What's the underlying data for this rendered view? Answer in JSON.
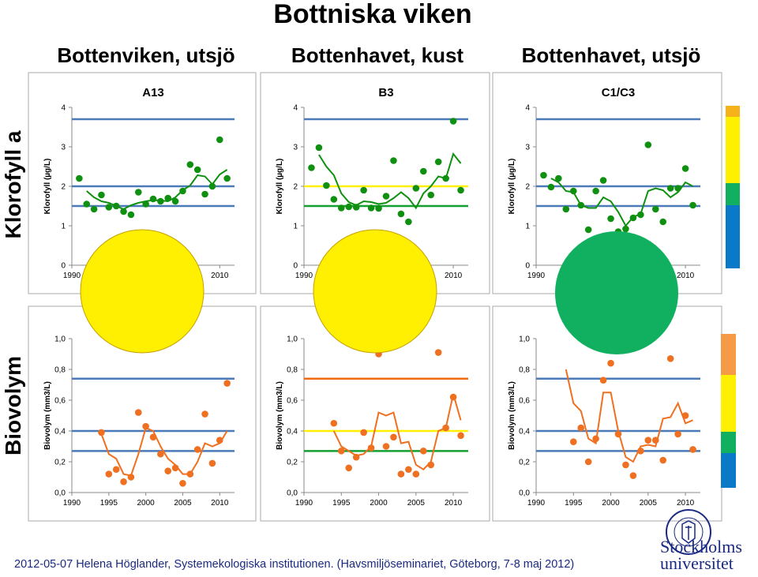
{
  "header": {
    "title": "Bottniska viken",
    "basins": [
      "Bottenviken, utsjö",
      "Bottenhavet, kust",
      "Bottenhavet, utsjö"
    ]
  },
  "row_labels": {
    "chlorophyll": "Klorofyll a",
    "biovolume": "Biovolym"
  },
  "colors": {
    "chl_points": "#109010",
    "bio_points": "#ee7020",
    "ref_blue": "#4a7ab8",
    "ref_yellow": "#ffef00",
    "ref_green": "#14a030",
    "ref_orange": "#f06a10",
    "status_yellow": "#ffef00",
    "status_green": "#10b060",
    "scale_chl": [
      "#f6b21a",
      "#ffef00",
      "#10b060",
      "#0a7ac8"
    ],
    "scale_bio": [
      "#f59a45",
      "#ffef00",
      "#10b060",
      "#0a7ac8"
    ]
  },
  "footer": {
    "text": "2012-05-07 Helena Höglander, Systemekologiska institutionen. (Havsmiljöseminariet, Göteborg, 7-8 maj 2012)"
  },
  "logo": {
    "seal_text": "UNIVERSITET · STOCKHOLMS",
    "line1": "Stockholms",
    "line2": "universitet"
  },
  "chart_data": [
    {
      "type": "scatter",
      "id": "chl-A13",
      "title": "A13",
      "ylabel": "Klorofyll (µg/L)",
      "xlim": [
        1990,
        2012
      ],
      "ylim": [
        0,
        4
      ],
      "yticks": [
        0,
        1,
        2,
        3,
        4
      ],
      "yticklabels": [
        "0",
        "1",
        "2",
        "3",
        "4"
      ],
      "xticks": [
        1990,
        2010
      ],
      "xticklabels": [
        "1990",
        "2010"
      ],
      "status_circle": "yellow",
      "reference_lines": [
        {
          "y": 3.7,
          "color": "blue"
        },
        {
          "y": 2.0,
          "color": "blue"
        },
        {
          "y": 1.5,
          "color": "blue"
        }
      ],
      "points": {
        "x": [
          1991,
          1992,
          1993,
          1994,
          1995,
          1996,
          1997,
          1998,
          1999,
          2000,
          2001,
          2002,
          2003,
          2004,
          2005,
          2006,
          2007,
          2008,
          2009,
          2010,
          2011
        ],
        "y": [
          2.2,
          1.55,
          1.42,
          1.78,
          1.47,
          1.5,
          1.36,
          1.28,
          1.85,
          1.55,
          1.68,
          1.62,
          1.7,
          1.62,
          1.88,
          2.55,
          2.42,
          1.8,
          2.0,
          3.18,
          2.2
        ]
      },
      "trend": {
        "x": [
          1992,
          1993,
          1994,
          1995,
          1996,
          1997,
          1998,
          1999,
          2000,
          2001,
          2002,
          2003,
          2004,
          2005,
          2006,
          2007,
          2008,
          2009,
          2010,
          2011
        ],
        "y": [
          1.88,
          1.72,
          1.62,
          1.58,
          1.5,
          1.42,
          1.52,
          1.58,
          1.62,
          1.65,
          1.64,
          1.62,
          1.72,
          1.9,
          2.02,
          2.28,
          2.25,
          2.05,
          2.3,
          2.42
        ]
      }
    },
    {
      "type": "scatter",
      "id": "chl-B3",
      "title": "B3",
      "ylabel": "Klorofyll (µg/L)",
      "xlim": [
        1990,
        2012
      ],
      "ylim": [
        0,
        4
      ],
      "yticks": [
        0,
        1,
        2,
        3,
        4
      ],
      "yticklabels": [
        "0",
        "1",
        "2",
        "3",
        "4"
      ],
      "xticks": [
        1990,
        2010
      ],
      "xticklabels": [
        "1990",
        "2010"
      ],
      "status_circle": "yellow",
      "reference_lines": [
        {
          "y": 3.7,
          "color": "blue"
        },
        {
          "y": 2.0,
          "color": "yellow"
        },
        {
          "y": 1.5,
          "color": "green"
        }
      ],
      "points": {
        "x": [
          1991,
          1992,
          1993,
          1994,
          1995,
          1996,
          1997,
          1998,
          1999,
          2000,
          2001,
          2002,
          2003,
          2004,
          2005,
          2006,
          2007,
          2008,
          2009,
          2010,
          2011
        ],
        "y": [
          2.47,
          2.98,
          2.02,
          1.67,
          1.45,
          1.48,
          1.47,
          1.9,
          1.45,
          1.44,
          1.75,
          2.65,
          1.3,
          1.1,
          1.95,
          2.38,
          1.78,
          2.62,
          2.2,
          3.65,
          1.9
        ]
      },
      "trend": {
        "x": [
          1992,
          1993,
          1994,
          1995,
          1996,
          1997,
          1998,
          1999,
          2000,
          2001,
          2002,
          2003,
          2004,
          2005,
          2006,
          2007,
          2008,
          2009,
          2010,
          2011
        ],
        "y": [
          2.8,
          2.5,
          2.28,
          1.82,
          1.6,
          1.52,
          1.62,
          1.6,
          1.55,
          1.58,
          1.7,
          1.85,
          1.7,
          1.45,
          1.82,
          2.0,
          2.25,
          2.2,
          2.82,
          2.58
        ]
      }
    },
    {
      "type": "scatter",
      "id": "chl-C1C3",
      "title": "C1/C3",
      "ylabel": "Klorofyll (µg/L)",
      "xlim": [
        1990,
        2012
      ],
      "ylim": [
        0,
        4
      ],
      "yticks": [
        0,
        1,
        2,
        3,
        4
      ],
      "yticklabels": [
        "0",
        "1",
        "2",
        "3",
        "4"
      ],
      "xticks": [
        1990,
        2010
      ],
      "xticklabels": [
        "1990",
        "2010"
      ],
      "status_circle": "green",
      "reference_lines": [
        {
          "y": 3.7,
          "color": "blue"
        },
        {
          "y": 2.0,
          "color": "blue"
        },
        {
          "y": 1.5,
          "color": "blue"
        }
      ],
      "points": {
        "x": [
          1991,
          1992,
          1993,
          1994,
          1995,
          1996,
          1997,
          1998,
          1999,
          2000,
          2001,
          2002,
          2003,
          2004,
          2005,
          2006,
          2007,
          2008,
          2009,
          2010,
          2011
        ],
        "y": [
          2.28,
          1.98,
          2.2,
          1.42,
          1.88,
          1.52,
          0.9,
          1.88,
          2.15,
          1.18,
          0.85,
          0.92,
          1.2,
          1.28,
          3.05,
          1.42,
          1.1,
          1.95,
          1.95,
          2.45,
          1.52
        ]
      },
      "trend": {
        "x": [
          1992,
          1993,
          1994,
          1995,
          1996,
          1997,
          1998,
          1999,
          2000,
          2001,
          2002,
          2003,
          2004,
          2005,
          2006,
          2007,
          2008,
          2009,
          2010,
          2011
        ],
        "y": [
          2.2,
          2.1,
          1.88,
          1.85,
          1.52,
          1.45,
          1.45,
          1.72,
          1.62,
          1.35,
          1.0,
          1.22,
          1.3,
          1.88,
          1.95,
          1.9,
          1.72,
          1.85,
          2.1,
          2.0
        ]
      }
    },
    {
      "type": "scatter",
      "id": "bio-A13",
      "title": "",
      "ylabel": "Biovolym (mm3/L)",
      "xlim": [
        1990,
        2012
      ],
      "ylim": [
        0,
        1.0
      ],
      "yticks": [
        0,
        0.2,
        0.4,
        0.6,
        0.8,
        1.0
      ],
      "yticklabels": [
        "0,0",
        "0,2",
        "0,4",
        "0,6",
        "0,8",
        "1,0"
      ],
      "xticks": [
        1990,
        1995,
        2000,
        2005,
        2010
      ],
      "xticklabels": [
        "1990",
        "1995",
        "2000",
        "2005",
        "2010"
      ],
      "reference_lines": [
        {
          "y": 0.74,
          "color": "blue"
        },
        {
          "y": 0.4,
          "color": "blue"
        },
        {
          "y": 0.27,
          "color": "blue"
        }
      ],
      "points": {
        "x": [
          1994,
          1995,
          1996,
          1997,
          1998,
          1999,
          2000,
          2001,
          2002,
          2003,
          2004,
          2005,
          2006,
          2007,
          2008,
          2009,
          2010,
          2011
        ],
        "y": [
          0.39,
          0.12,
          0.15,
          0.07,
          0.1,
          0.52,
          0.43,
          0.36,
          0.25,
          0.14,
          0.16,
          0.06,
          0.12,
          0.28,
          0.51,
          0.19,
          0.34,
          0.71
        ]
      },
      "trend": {
        "x": [
          1994,
          1995,
          1996,
          1997,
          1998,
          1999,
          2000,
          2001,
          2002,
          2003,
          2004,
          2005,
          2006,
          2007,
          2008,
          2009,
          2010,
          2011
        ],
        "y": [
          0.38,
          0.25,
          0.22,
          0.12,
          0.11,
          0.25,
          0.42,
          0.4,
          0.3,
          0.22,
          0.18,
          0.12,
          0.12,
          0.2,
          0.32,
          0.3,
          0.32,
          0.4
        ]
      }
    },
    {
      "type": "scatter",
      "id": "bio-B3",
      "title": "",
      "ylabel": "Biovolym (mm3/L)",
      "xlim": [
        1990,
        2012
      ],
      "ylim": [
        0,
        1.0
      ],
      "yticks": [
        0,
        0.2,
        0.4,
        0.6,
        0.8,
        1.0
      ],
      "yticklabels": [
        "0,0",
        "0,2",
        "0,4",
        "0,6",
        "0,8",
        "1,0"
      ],
      "xticks": [
        1990,
        1995,
        2000,
        2005,
        2010
      ],
      "xticklabels": [
        "1990",
        "1995",
        "2000",
        "2005",
        "2010"
      ],
      "reference_lines": [
        {
          "y": 0.74,
          "color": "orange"
        },
        {
          "y": 0.4,
          "color": "yellow"
        },
        {
          "y": 0.27,
          "color": "green"
        }
      ],
      "points": {
        "x": [
          1994,
          1995,
          1996,
          1997,
          1998,
          1999,
          2000,
          2001,
          2002,
          2003,
          2004,
          2005,
          2006,
          2007,
          2008,
          2009,
          2010,
          2011
        ],
        "y": [
          0.45,
          0.27,
          0.16,
          0.23,
          0.39,
          0.29,
          0.9,
          0.3,
          0.36,
          0.12,
          0.15,
          0.12,
          0.27,
          0.18,
          0.91,
          0.42,
          0.62,
          0.37
        ]
      },
      "trend": {
        "x": [
          1994,
          1995,
          1996,
          1997,
          1998,
          1999,
          2000,
          2001,
          2002,
          2003,
          2004,
          2005,
          2006,
          2007,
          2008,
          2009,
          2010,
          2011
        ],
        "y": [
          0.4,
          0.3,
          0.27,
          0.24,
          0.25,
          0.3,
          0.52,
          0.5,
          0.52,
          0.32,
          0.33,
          0.18,
          0.15,
          0.2,
          0.4,
          0.42,
          0.64,
          0.47
        ]
      }
    },
    {
      "type": "scatter",
      "id": "bio-C1C3",
      "title": "",
      "ylabel": "Biovolym (mm3/L)",
      "xlim": [
        1990,
        2012
      ],
      "ylim": [
        0,
        1.0
      ],
      "yticks": [
        0,
        0.2,
        0.4,
        0.6,
        0.8,
        1.0
      ],
      "yticklabels": [
        "0,0",
        "0,2",
        "0,4",
        "0,6",
        "0,8",
        "1,0"
      ],
      "xticks": [
        1990,
        1995,
        2000,
        2005,
        2010
      ],
      "xticklabels": [
        "1990",
        "1995",
        "2000",
        "2005",
        "2010"
      ],
      "reference_lines": [
        {
          "y": 0.74,
          "color": "blue"
        },
        {
          "y": 0.4,
          "color": "blue"
        },
        {
          "y": 0.27,
          "color": "blue"
        }
      ],
      "points": {
        "x": [
          1995,
          1996,
          1997,
          1998,
          1999,
          2000,
          2001,
          2002,
          2003,
          2004,
          2005,
          2006,
          2007,
          2008,
          2009,
          2010,
          2011
        ],
        "y": [
          0.33,
          0.42,
          0.2,
          0.35,
          0.73,
          0.84,
          0.38,
          0.18,
          0.11,
          0.27,
          0.34,
          0.34,
          0.21,
          0.87,
          0.38,
          0.5,
          0.28
        ]
      },
      "trend": {
        "x": [
          1994,
          1995,
          1996,
          1997,
          1998,
          1999,
          2000,
          2001,
          2002,
          2003,
          2004,
          2005,
          2006,
          2007,
          2008,
          2009,
          2010,
          2011
        ],
        "y": [
          0.8,
          0.58,
          0.53,
          0.35,
          0.32,
          0.65,
          0.65,
          0.4,
          0.23,
          0.2,
          0.3,
          0.31,
          0.3,
          0.48,
          0.49,
          0.58,
          0.45,
          0.47
        ]
      }
    }
  ]
}
